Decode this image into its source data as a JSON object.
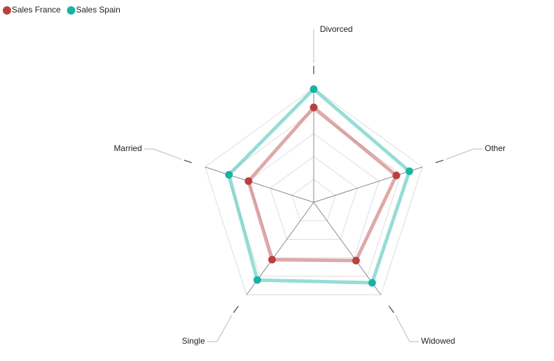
{
  "chart_data": {
    "type": "radar",
    "categories": [
      "Divorced",
      "Other",
      "Widowed",
      "Single",
      "Married"
    ],
    "series": [
      {
        "name": "Sales France",
        "color": "#b8413f",
        "values": [
          83,
          76,
          63,
          62,
          60
        ]
      },
      {
        "name": "Sales Spain",
        "color": "#17b3a3",
        "values": [
          99,
          88,
          87,
          84,
          78
        ]
      }
    ],
    "rlim": [
      0,
      100
    ],
    "rticks": [
      20,
      40,
      60,
      80,
      100
    ],
    "grid": true,
    "legend": "top-left"
  }
}
